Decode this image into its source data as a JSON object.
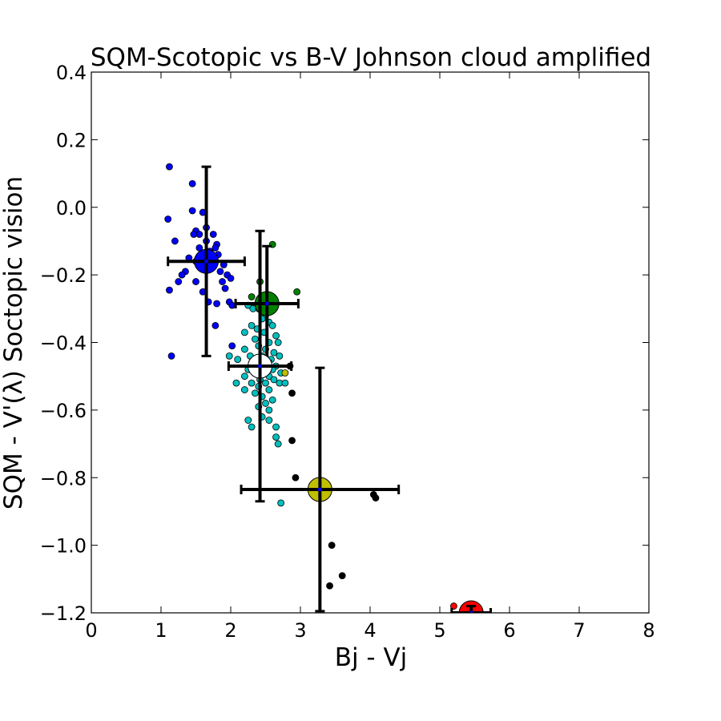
{
  "chart_data": {
    "type": "scatter",
    "title": "SQM-Scotopic vs B-V Johnson cloud amplified",
    "xlabel": "Bj - Vj",
    "ylabel": "SQM - V'(λ) Soctopic vision",
    "xlim": [
      0,
      8
    ],
    "ylim": [
      -1.2,
      0.4
    ],
    "x_ticks": [
      0,
      1,
      2,
      3,
      4,
      5,
      6,
      7,
      8
    ],
    "y_ticks": [
      0.4,
      0.2,
      0.0,
      -0.2,
      -0.4,
      -0.6,
      -0.8,
      -1.0,
      -1.2
    ],
    "y_tick_labels": [
      "0.4",
      "0.2",
      "0.0",
      "−0.2",
      "−0.4",
      "−0.6",
      "−0.8",
      "−1.0",
      "−1.2"
    ],
    "grid": false,
    "series": [
      {
        "color": "#0000ff",
        "points": [
          [
            1.12,
            0.12
          ],
          [
            1.45,
            0.07
          ],
          [
            1.1,
            -0.035
          ],
          [
            1.45,
            -0.01
          ],
          [
            1.6,
            -0.015
          ],
          [
            1.5,
            -0.07
          ],
          [
            1.55,
            -0.08
          ],
          [
            1.47,
            -0.08
          ],
          [
            1.65,
            -0.06
          ],
          [
            1.75,
            -0.08
          ],
          [
            1.8,
            -0.11
          ],
          [
            1.78,
            -0.12
          ],
          [
            1.2,
            -0.1
          ],
          [
            1.65,
            -0.1
          ],
          [
            1.55,
            -0.12
          ],
          [
            1.7,
            -0.13
          ],
          [
            1.58,
            -0.14
          ],
          [
            1.82,
            -0.14
          ],
          [
            1.4,
            -0.15
          ],
          [
            1.5,
            -0.16
          ],
          [
            1.62,
            -0.17
          ],
          [
            1.75,
            -0.165
          ],
          [
            1.9,
            -0.17
          ],
          [
            1.85,
            -0.19
          ],
          [
            1.95,
            -0.2
          ],
          [
            2.0,
            -0.21
          ],
          [
            1.35,
            -0.19
          ],
          [
            1.3,
            -0.2
          ],
          [
            1.25,
            -0.22
          ],
          [
            1.5,
            -0.22
          ],
          [
            1.88,
            -0.22
          ],
          [
            1.92,
            -0.24
          ],
          [
            1.12,
            -0.245
          ],
          [
            1.6,
            -0.25
          ],
          [
            1.68,
            -0.28
          ],
          [
            1.8,
            -0.285
          ],
          [
            1.98,
            -0.28
          ],
          [
            2.02,
            -0.29
          ],
          [
            1.78,
            -0.35
          ],
          [
            2.02,
            -0.41
          ],
          [
            1.15,
            -0.44
          ]
        ]
      },
      {
        "color": "#008000",
        "points": [
          [
            2.6,
            -0.11
          ],
          [
            2.42,
            -0.22
          ],
          [
            2.95,
            -0.25
          ],
          [
            2.3,
            -0.265
          ]
        ]
      },
      {
        "color": "#00bfbf",
        "points": [
          [
            2.25,
            -0.29
          ],
          [
            2.32,
            -0.3
          ],
          [
            2.4,
            -0.3
          ],
          [
            2.5,
            -0.32
          ],
          [
            2.45,
            -0.33
          ],
          [
            2.55,
            -0.34
          ],
          [
            2.3,
            -0.35
          ],
          [
            2.6,
            -0.35
          ],
          [
            2.38,
            -0.36
          ],
          [
            2.2,
            -0.37
          ],
          [
            2.48,
            -0.37
          ],
          [
            2.65,
            -0.38
          ],
          [
            2.35,
            -0.39
          ],
          [
            2.55,
            -0.4
          ],
          [
            2.68,
            -0.4
          ],
          [
            2.4,
            -0.41
          ],
          [
            2.2,
            -0.42
          ],
          [
            2.5,
            -0.42
          ],
          [
            2.62,
            -0.43
          ],
          [
            2.28,
            -0.44
          ],
          [
            2.45,
            -0.44
          ],
          [
            2.7,
            -0.44
          ],
          [
            2.38,
            -0.45
          ],
          [
            2.58,
            -0.45
          ],
          [
            1.98,
            -0.44
          ],
          [
            2.1,
            -0.45
          ],
          [
            2.3,
            -0.46
          ],
          [
            2.52,
            -0.46
          ],
          [
            2.65,
            -0.47
          ],
          [
            2.4,
            -0.47
          ],
          [
            2.25,
            -0.48
          ],
          [
            2.48,
            -0.48
          ],
          [
            2.6,
            -0.48
          ],
          [
            2.72,
            -0.49
          ],
          [
            2.35,
            -0.49
          ],
          [
            2.2,
            -0.5
          ],
          [
            2.55,
            -0.5
          ],
          [
            2.42,
            -0.51
          ],
          [
            2.62,
            -0.51
          ],
          [
            2.3,
            -0.52
          ],
          [
            2.08,
            -0.52
          ],
          [
            2.5,
            -0.52
          ],
          [
            2.7,
            -0.52
          ],
          [
            2.78,
            -0.52
          ],
          [
            2.4,
            -0.53
          ],
          [
            2.2,
            -0.54
          ],
          [
            2.55,
            -0.54
          ],
          [
            2.35,
            -0.55
          ],
          [
            2.45,
            -0.56
          ],
          [
            2.6,
            -0.57
          ],
          [
            2.5,
            -0.58
          ],
          [
            2.4,
            -0.59
          ],
          [
            2.55,
            -0.6
          ],
          [
            2.45,
            -0.62
          ],
          [
            2.55,
            -0.63
          ],
          [
            2.25,
            -0.63
          ],
          [
            2.65,
            -0.65
          ],
          [
            2.3,
            -0.65
          ],
          [
            2.65,
            -0.68
          ],
          [
            2.68,
            -0.7
          ],
          [
            2.72,
            -0.875
          ]
        ]
      },
      {
        "color": "#bfbf00",
        "points": [
          [
            2.78,
            -0.49
          ]
        ]
      },
      {
        "color": "#000000",
        "points": [
          [
            2.85,
            -0.47
          ],
          [
            2.88,
            -0.55
          ],
          [
            2.88,
            -0.69
          ],
          [
            2.93,
            -0.8
          ],
          [
            4.05,
            -0.85
          ],
          [
            4.08,
            -0.86
          ],
          [
            3.45,
            -1.0
          ],
          [
            3.6,
            -1.09
          ],
          [
            3.42,
            -1.12
          ]
        ]
      },
      {
        "color": "#ff0000",
        "points": [
          [
            5.2,
            -1.18
          ]
        ]
      }
    ],
    "summary_points": [
      {
        "color": "#0000ff",
        "x": 1.65,
        "y": -0.16,
        "xerr": 0.55,
        "yerr": 0.28
      },
      {
        "color": "#008000",
        "x": 2.52,
        "y": -0.285,
        "xerr": 0.45,
        "yerr": 0.17
      },
      {
        "color": "#ffffff",
        "x": 2.42,
        "y": -0.47,
        "xerr": 0.45,
        "yerr": 0.4
      },
      {
        "color": "#bfbf00",
        "x": 3.28,
        "y": -0.835,
        "xerr": 1.13,
        "yerr": 0.36
      },
      {
        "color": "#ff0000",
        "x": 5.45,
        "y": -1.2,
        "xerr": 0.28,
        "yerr": 0.02
      }
    ]
  }
}
